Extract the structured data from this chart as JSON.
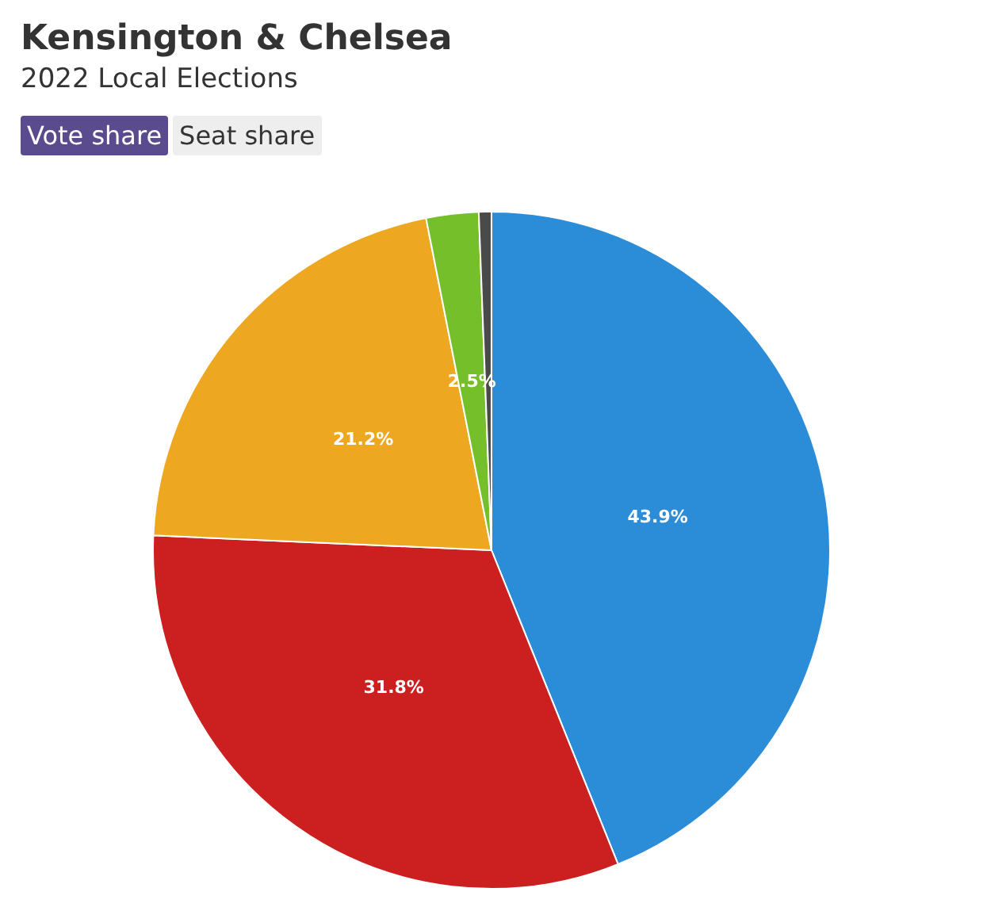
{
  "chart_data": {
    "type": "pie",
    "title": "Kensington & Chelsea",
    "subtitle": "2022 Local Elections",
    "annotations": [
      "Vote share",
      "Seat share"
    ],
    "categories": [
      null,
      null,
      null,
      null,
      null
    ],
    "values": [
      43.9,
      31.8,
      21.2,
      2.5,
      0.6
    ],
    "colors": [
      "#2b8cd8",
      "#cc1f20",
      "#eea720",
      "#75c02a",
      "#4a4a4a"
    ],
    "value_labels": [
      "43.9%",
      "31.8%",
      "21.2%",
      "2.5%",
      null
    ],
    "legend": false
  }
}
